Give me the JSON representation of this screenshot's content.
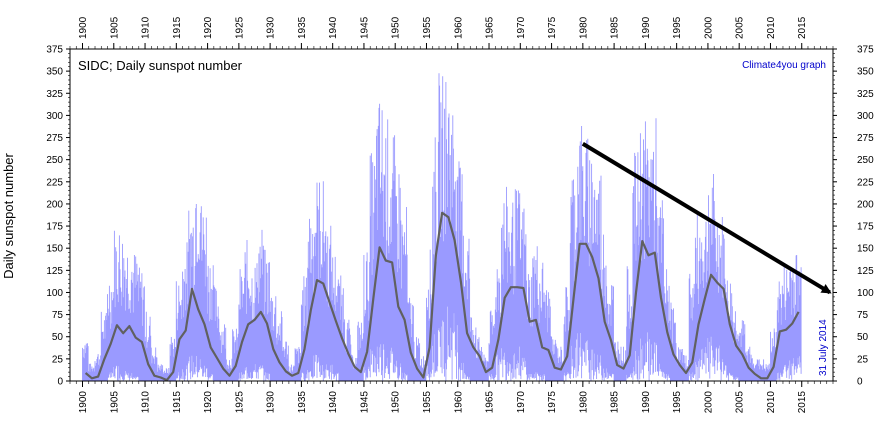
{
  "chart_data": {
    "type": "line",
    "title": "SIDC; Daily sunspot number",
    "credit": "Climate4you graph",
    "date_note": "31 July 2014",
    "ylabel": "Daily sunspot number",
    "xlim": [
      1898,
      2020
    ],
    "ylim": [
      0,
      375
    ],
    "x_ticks": [
      1900,
      1905,
      1910,
      1915,
      1920,
      1925,
      1930,
      1935,
      1940,
      1945,
      1950,
      1955,
      1960,
      1965,
      1970,
      1975,
      1980,
      1985,
      1990,
      1995,
      2000,
      2005,
      2010,
      2015
    ],
    "y_ticks": [
      0,
      25,
      50,
      75,
      100,
      125,
      150,
      175,
      200,
      225,
      250,
      275,
      300,
      325,
      350,
      375
    ],
    "colors": {
      "daily": "#9a9aff",
      "smoothed": "#606060",
      "arrow": "#000000",
      "credit": "#0000cc"
    },
    "series": [
      {
        "name": "",
        "kind": "daily-envelope",
        "x": [
          1900.5,
          1901.5,
          1902.5,
          1903.5,
          1904.5,
          1905.5,
          1906.5,
          1907.5,
          1908.5,
          1909.5,
          1910.5,
          1911.5,
          1912.5,
          1913.5,
          1914.5,
          1915.5,
          1916.5,
          1917.5,
          1918.5,
          1919.5,
          1920.5,
          1921.5,
          1922.5,
          1923.5,
          1924.5,
          1925.5,
          1926.5,
          1927.5,
          1928.5,
          1929.5,
          1930.5,
          1931.5,
          1932.5,
          1933.5,
          1934.5,
          1935.5,
          1936.5,
          1937.5,
          1938.5,
          1939.5,
          1940.5,
          1941.5,
          1942.5,
          1943.5,
          1944.5,
          1945.5,
          1946.5,
          1947.5,
          1948.5,
          1949.5,
          1950.5,
          1951.5,
          1952.5,
          1953.5,
          1954.5,
          1955.5,
          1956.5,
          1957.5,
          1958.5,
          1959.5,
          1960.5,
          1961.5,
          1962.5,
          1963.5,
          1964.5,
          1965.5,
          1966.5,
          1967.5,
          1968.5,
          1969.5,
          1970.5,
          1971.5,
          1972.5,
          1973.5,
          1974.5,
          1975.5,
          1976.5,
          1977.5,
          1978.5,
          1979.5,
          1980.5,
          1981.5,
          1982.5,
          1983.5,
          1984.5,
          1985.5,
          1986.5,
          1987.5,
          1988.5,
          1989.5,
          1990.5,
          1991.5,
          1992.5,
          1993.5,
          1994.5,
          1995.5,
          1996.5,
          1997.5,
          1998.5,
          1999.5,
          2000.5,
          2001.5,
          2002.5,
          2003.5,
          2004.5,
          2005.5,
          2006.5,
          2007.5,
          2008.5,
          2009.5,
          2010.5,
          2011.5,
          2012.5,
          2013.5,
          2014.5
        ],
        "high": [
          52,
          20,
          35,
          80,
          130,
          180,
          175,
          165,
          150,
          130,
          80,
          40,
          20,
          15,
          55,
          120,
          160,
          210,
          270,
          210,
          150,
          110,
          70,
          30,
          60,
          130,
          160,
          140,
          180,
          150,
          110,
          80,
          50,
          20,
          40,
          120,
          210,
          235,
          230,
          180,
          150,
          120,
          70,
          30,
          70,
          150,
          260,
          325,
          300,
          280,
          250,
          200,
          100,
          50,
          30,
          150,
          280,
          350,
          355,
          330,
          250,
          180,
          80,
          50,
          30,
          80,
          150,
          220,
          210,
          220,
          205,
          130,
          160,
          140,
          110,
          50,
          40,
          110,
          250,
          300,
          280,
          275,
          250,
          180,
          120,
          50,
          40,
          130,
          260,
          300,
          295,
          300,
          210,
          130,
          90,
          40,
          30,
          130,
          190,
          200,
          245,
          205,
          190,
          120,
          90,
          70,
          40,
          30,
          25,
          20,
          60,
          120,
          135,
          155,
          150
        ],
        "low": [
          0,
          0,
          0,
          0,
          10,
          20,
          15,
          10,
          5,
          0,
          0,
          0,
          0,
          0,
          0,
          10,
          20,
          30,
          30,
          20,
          10,
          0,
          0,
          0,
          0,
          10,
          20,
          20,
          20,
          10,
          0,
          0,
          0,
          0,
          0,
          10,
          20,
          30,
          20,
          20,
          10,
          0,
          0,
          0,
          0,
          20,
          40,
          50,
          50,
          40,
          30,
          10,
          0,
          0,
          0,
          20,
          60,
          80,
          90,
          80,
          40,
          10,
          0,
          0,
          0,
          10,
          30,
          40,
          40,
          40,
          30,
          10,
          10,
          10,
          0,
          0,
          0,
          10,
          40,
          60,
          50,
          50,
          30,
          20,
          10,
          0,
          0,
          10,
          40,
          60,
          60,
          50,
          20,
          10,
          0,
          0,
          0,
          10,
          30,
          40,
          50,
          40,
          30,
          10,
          5,
          0,
          0,
          0,
          0,
          0,
          0,
          10,
          20,
          30,
          30
        ]
      },
      {
        "name": "",
        "kind": "smoothed",
        "x": [
          1900.5,
          1901.5,
          1902.5,
          1903.5,
          1904.5,
          1905.5,
          1906.5,
          1907.5,
          1908.5,
          1909.5,
          1910.5,
          1911.5,
          1912.5,
          1913.5,
          1914.5,
          1915.5,
          1916.5,
          1917.5,
          1918.5,
          1919.5,
          1920.5,
          1921.5,
          1922.5,
          1923.5,
          1924.5,
          1925.5,
          1926.5,
          1927.5,
          1928.5,
          1929.5,
          1930.5,
          1931.5,
          1932.5,
          1933.5,
          1934.5,
          1935.5,
          1936.5,
          1937.5,
          1938.5,
          1939.5,
          1940.5,
          1941.5,
          1942.5,
          1943.5,
          1944.5,
          1945.5,
          1946.5,
          1947.5,
          1948.5,
          1949.5,
          1950.5,
          1951.5,
          1952.5,
          1953.5,
          1954.5,
          1955.5,
          1956.5,
          1957.5,
          1958.5,
          1959.5,
          1960.5,
          1961.5,
          1962.5,
          1963.5,
          1964.5,
          1965.5,
          1966.5,
          1967.5,
          1968.5,
          1969.5,
          1970.5,
          1971.5,
          1972.5,
          1973.5,
          1974.5,
          1975.5,
          1976.5,
          1977.5,
          1978.5,
          1979.5,
          1980.5,
          1981.5,
          1982.5,
          1983.5,
          1984.5,
          1985.5,
          1986.5,
          1987.5,
          1988.5,
          1989.5,
          1990.5,
          1991.5,
          1992.5,
          1993.5,
          1994.5,
          1995.5,
          1996.5,
          1997.5,
          1998.5,
          1999.5,
          2000.5,
          2001.5,
          2002.5,
          2003.5,
          2004.5,
          2005.5,
          2006.5,
          2007.5,
          2008.5,
          2009.5,
          2010.5,
          2011.5,
          2012.5,
          2013.5,
          2014.5
        ],
        "y": [
          9,
          3,
          5,
          25,
          42,
          63,
          54,
          62,
          49,
          44,
          19,
          6,
          4,
          1,
          10,
          47,
          57,
          104,
          81,
          64,
          38,
          26,
          14,
          6,
          17,
          44,
          64,
          69,
          78,
          65,
          36,
          21,
          11,
          6,
          9,
          36,
          80,
          114,
          110,
          89,
          68,
          48,
          31,
          16,
          10,
          33,
          93,
          151,
          136,
          134,
          84,
          69,
          32,
          14,
          4,
          38,
          142,
          190,
          185,
          159,
          112,
          54,
          38,
          28,
          10,
          15,
          47,
          94,
          106,
          106,
          105,
          67,
          69,
          38,
          35,
          15,
          13,
          28,
          93,
          155,
          155,
          140,
          116,
          67,
          46,
          18,
          14,
          29,
          100,
          158,
          142,
          145,
          94,
          55,
          30,
          18,
          9,
          21,
          64,
          93,
          120,
          111,
          104,
          64,
          40,
          30,
          15,
          8,
          3,
          3,
          16,
          56,
          58,
          65,
          78
        ]
      }
    ],
    "trend_arrow": {
      "x": [
        1980,
        2019.5
      ],
      "y": [
        268,
        100
      ]
    }
  }
}
